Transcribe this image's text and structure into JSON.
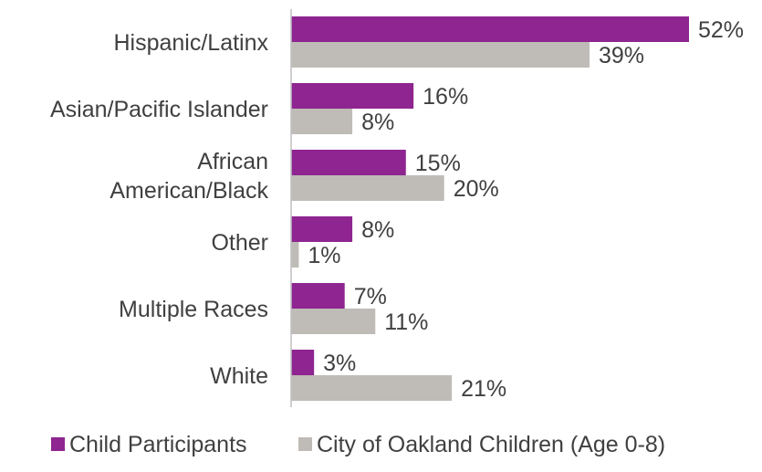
{
  "chart_data": {
    "type": "bar",
    "orientation": "horizontal",
    "categories": [
      [
        "Hispanic/Latinx"
      ],
      [
        "Asian/Pacific Islander"
      ],
      [
        "African",
        "American/Black"
      ],
      [
        "Other"
      ],
      [
        "Multiple Races"
      ],
      [
        "White"
      ]
    ],
    "series": [
      {
        "name": "Child Participants",
        "color": "#8E2590",
        "values": [
          52,
          16,
          15,
          8,
          7,
          3
        ],
        "labels": [
          "52%",
          "16%",
          "15%",
          "8%",
          "7%",
          "3%"
        ]
      },
      {
        "name": "City of Oakland Children (Age 0-8)",
        "color": "#BFBBB6",
        "values": [
          39,
          8,
          20,
          1,
          11,
          21
        ],
        "labels": [
          "39%",
          "8%",
          "20%",
          "1%",
          "11%",
          "21%"
        ]
      }
    ],
    "xlim": [
      0,
      52
    ],
    "legend_position": "bottom",
    "grid": false
  }
}
